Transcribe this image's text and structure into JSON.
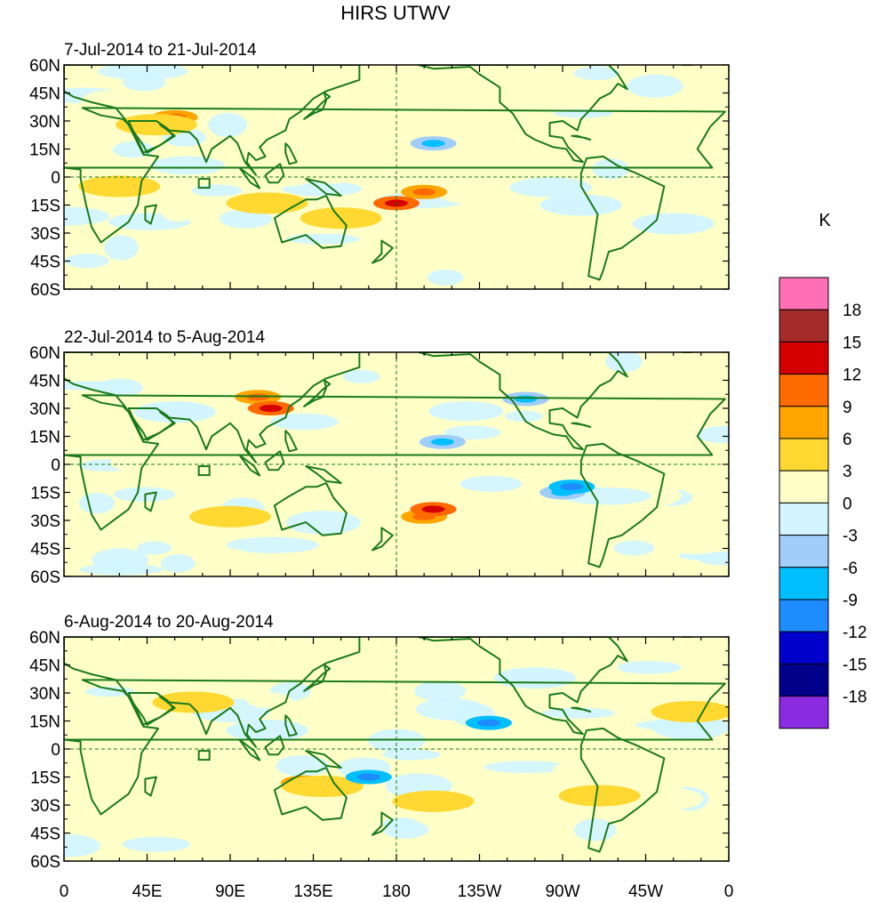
{
  "chart_data": {
    "type": "heatmap",
    "title": "HIRS UTWV",
    "colorbar": {
      "unit": "K",
      "levels": [
        "18",
        "15",
        "12",
        "9",
        "6",
        "3",
        "0",
        "-3",
        "-6",
        "-9",
        "-12",
        "-15",
        "-18"
      ],
      "colors": [
        "#ff6fb4",
        "#a52a2a",
        "#d40000",
        "#ff6a00",
        "#ffa500",
        "#ffd932",
        "#ffffc8",
        "#d2f5ff",
        "#a0cdfa",
        "#00bfff",
        "#1e8cff",
        "#0000cd",
        "#00008b",
        "#8a2be2"
      ]
    },
    "x_ticks": [
      "0",
      "45E",
      "90E",
      "135E",
      "180",
      "135W",
      "90W",
      "45W",
      "0"
    ],
    "y_ticks": [
      "60N",
      "45N",
      "30N",
      "15N",
      "0",
      "15S",
      "30S",
      "45S",
      "60S"
    ],
    "xlim": [
      0,
      360
    ],
    "ylim": [
      -60,
      60
    ],
    "coastline_color": "#1a7a1a",
    "panels": [
      {
        "subtitle": "7-Jul-2014 to 21-Jul-2014",
        "anomalies": [
          {
            "lon": 195,
            "lat": -8,
            "value": 6
          },
          {
            "lon": 180,
            "lat": -14,
            "value": 9
          },
          {
            "lon": 60,
            "lat": 32,
            "value": 6
          },
          {
            "lon": 50,
            "lat": 28,
            "value": 3
          },
          {
            "lon": 110,
            "lat": -14,
            "value": 3
          },
          {
            "lon": 150,
            "lat": -22,
            "value": 3
          },
          {
            "lon": 200,
            "lat": 18,
            "value": -6
          },
          {
            "lon": 280,
            "lat": -15,
            "value": -3
          },
          {
            "lon": 30,
            "lat": -5,
            "value": 3
          },
          {
            "lon": 330,
            "lat": -25,
            "value": -3
          }
        ]
      },
      {
        "subtitle": "22-Jul-2014 to 5-Aug-2014",
        "anomalies": [
          {
            "lon": 105,
            "lat": 36,
            "value": 6
          },
          {
            "lon": 112,
            "lat": 30,
            "value": 9
          },
          {
            "lon": 195,
            "lat": -28,
            "value": 6
          },
          {
            "lon": 200,
            "lat": -24,
            "value": 9
          },
          {
            "lon": 90,
            "lat": -28,
            "value": 3
          },
          {
            "lon": 270,
            "lat": -15,
            "value": -6
          },
          {
            "lon": 275,
            "lat": -12,
            "value": -9
          },
          {
            "lon": 205,
            "lat": 12,
            "value": -6
          },
          {
            "lon": 250,
            "lat": 35,
            "value": -6
          },
          {
            "lon": 60,
            "lat": 28,
            "value": -3
          }
        ]
      },
      {
        "subtitle": "6-Aug-2014 to 20-Aug-2014",
        "anomalies": [
          {
            "lon": 130,
            "lat": -18,
            "value": 6
          },
          {
            "lon": 140,
            "lat": -20,
            "value": 3
          },
          {
            "lon": 200,
            "lat": -28,
            "value": 3
          },
          {
            "lon": 290,
            "lat": -25,
            "value": 3
          },
          {
            "lon": 340,
            "lat": 20,
            "value": 3
          },
          {
            "lon": 230,
            "lat": 14,
            "value": -9
          },
          {
            "lon": 165,
            "lat": -15,
            "value": -9
          },
          {
            "lon": 110,
            "lat": 10,
            "value": -3
          },
          {
            "lon": 70,
            "lat": 25,
            "value": 3
          },
          {
            "lon": 255,
            "lat": 38,
            "value": -3
          }
        ]
      }
    ]
  }
}
